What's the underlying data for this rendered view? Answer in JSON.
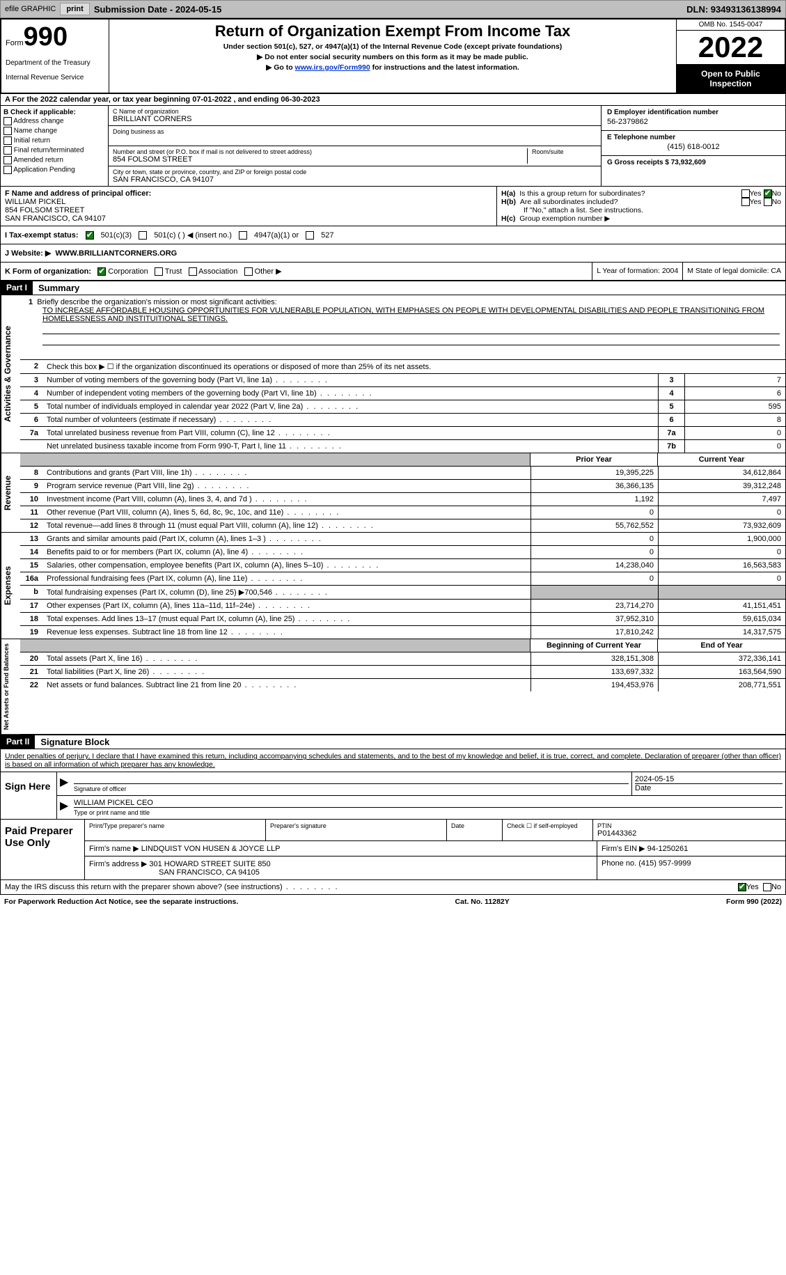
{
  "top": {
    "efile": "efile GRAPHIC",
    "print": "print",
    "sub_date_label": "Submission Date - 2024-05-15",
    "dln": "DLN: 93493136138994"
  },
  "header": {
    "form": "Form",
    "form_num": "990",
    "dept": "Department of the Treasury",
    "irs": "Internal Revenue Service",
    "title": "Return of Organization Exempt From Income Tax",
    "sub1": "Under section 501(c), 527, or 4947(a)(1) of the Internal Revenue Code (except private foundations)",
    "sub2": "▶ Do not enter social security numbers on this form as it may be made public.",
    "sub3_pre": "▶ Go to ",
    "sub3_link": "www.irs.gov/Form990",
    "sub3_post": " for instructions and the latest information.",
    "omb": "OMB No. 1545-0047",
    "year": "2022",
    "open": "Open to Public Inspection"
  },
  "section_a": "A For the 2022 calendar year, or tax year beginning 07-01-2022   , and ending 06-30-2023",
  "col_b": {
    "hdr": "B Check if applicable:",
    "items": [
      "Address change",
      "Name change",
      "Initial return",
      "Final return/terminated",
      "Amended return",
      "Application Pending"
    ]
  },
  "col_c": {
    "name_lbl": "C Name of organization",
    "name": "BRILLIANT CORNERS",
    "dba_lbl": "Doing business as",
    "addr_lbl": "Number and street (or P.O. box if mail is not delivered to street address)",
    "addr": "854 FOLSOM STREET",
    "room_lbl": "Room/suite",
    "city_lbl": "City or town, state or province, country, and ZIP or foreign postal code",
    "city": "SAN FRANCISCO, CA  94107"
  },
  "col_d": {
    "d_lbl": "D Employer identification number",
    "d_val": "56-2379862",
    "e_lbl": "E Telephone number",
    "e_val": "(415) 618-0012",
    "g_lbl": "G Gross receipts $ 73,932,609"
  },
  "fg": {
    "f_lbl": "F Name and address of principal officer:",
    "f_name": "WILLIAM PICKEL",
    "f_addr1": "854 FOLSOM STREET",
    "f_addr2": "SAN FRANCISCO, CA  94107",
    "ha": "Is this a group return for subordinates?",
    "hb": "Are all subordinates included?",
    "hb_note": "If \"No,\" attach a list. See instructions.",
    "hc": "Group exemption number ▶",
    "yes": "Yes",
    "no": "No"
  },
  "status": {
    "i_lbl": "I   Tax-exempt status:",
    "opt1": "501(c)(3)",
    "opt2": "501(c) (  ) ◀ (insert no.)",
    "opt3": "4947(a)(1) or",
    "opt4": "527"
  },
  "website": {
    "j_lbl": "J   Website: ▶",
    "val": "WWW.BRILLIANTCORNERS.ORG"
  },
  "klm": {
    "k": "K Form of organization:",
    "corp": "Corporation",
    "trust": "Trust",
    "assoc": "Association",
    "other": "Other ▶",
    "l": "L Year of formation: 2004",
    "m": "M State of legal domicile: CA"
  },
  "part1": {
    "hdr": "Part I",
    "title": "Summary",
    "mission_lbl": "Briefly describe the organization's mission or most significant activities:",
    "mission": "TO INCREASE AFFORDABLE HOUSING OPPORTUNITIES FOR VULNERABLE POPULATION, WITH EMPHASES ON PEOPLE WITH DEVELOPMENTAL DISABILITIES AND PEOPLE TRANSITIONING FROM HOMELESSNESS AND INSTITUITIONAL SETTINGS.",
    "line2": "Check this box ▶ ☐ if the organization discontinued its operations or disposed of more than 25% of its net assets.",
    "line3": "Number of voting members of the governing body (Part VI, line 1a)",
    "line4": "Number of independent voting members of the governing body (Part VI, line 1b)",
    "line5": "Total number of individuals employed in calendar year 2022 (Part V, line 2a)",
    "line6": "Total number of volunteers (estimate if necessary)",
    "line7a": "Total unrelated business revenue from Part VIII, column (C), line 12",
    "line7b": "Net unrelated business taxable income from Form 990-T, Part I, line 11",
    "v3": "7",
    "v4": "6",
    "v5": "595",
    "v6": "8",
    "v7a": "0",
    "v7b": "0",
    "prior_yr": "Prior Year",
    "curr_yr": "Current Year",
    "boy": "Beginning of Current Year",
    "eoy": "End of Year",
    "side_ag": "Activities & Governance",
    "side_rev": "Revenue",
    "side_exp": "Expenses",
    "side_na": "Net Assets or Fund Balances"
  },
  "revenue": [
    {
      "n": "8",
      "t": "Contributions and grants (Part VIII, line 1h)",
      "p": "19,395,225",
      "c": "34,612,864"
    },
    {
      "n": "9",
      "t": "Program service revenue (Part VIII, line 2g)",
      "p": "36,366,135",
      "c": "39,312,248"
    },
    {
      "n": "10",
      "t": "Investment income (Part VIII, column (A), lines 3, 4, and 7d )",
      "p": "1,192",
      "c": "7,497"
    },
    {
      "n": "11",
      "t": "Other revenue (Part VIII, column (A), lines 5, 6d, 8c, 9c, 10c, and 11e)",
      "p": "0",
      "c": "0"
    },
    {
      "n": "12",
      "t": "Total revenue—add lines 8 through 11 (must equal Part VIII, column (A), line 12)",
      "p": "55,762,552",
      "c": "73,932,609"
    }
  ],
  "expenses": [
    {
      "n": "13",
      "t": "Grants and similar amounts paid (Part IX, column (A), lines 1–3 )",
      "p": "0",
      "c": "1,900,000"
    },
    {
      "n": "14",
      "t": "Benefits paid to or for members (Part IX, column (A), line 4)",
      "p": "0",
      "c": "0"
    },
    {
      "n": "15",
      "t": "Salaries, other compensation, employee benefits (Part IX, column (A), lines 5–10)",
      "p": "14,238,040",
      "c": "16,563,583"
    },
    {
      "n": "16a",
      "t": "Professional fundraising fees (Part IX, column (A), line 11e)",
      "p": "0",
      "c": "0"
    },
    {
      "n": "b",
      "t": "Total fundraising expenses (Part IX, column (D), line 25) ▶700,546",
      "p": "",
      "c": "",
      "gray": true
    },
    {
      "n": "17",
      "t": "Other expenses (Part IX, column (A), lines 11a–11d, 11f–24e)",
      "p": "23,714,270",
      "c": "41,151,451"
    },
    {
      "n": "18",
      "t": "Total expenses. Add lines 13–17 (must equal Part IX, column (A), line 25)",
      "p": "37,952,310",
      "c": "59,615,034"
    },
    {
      "n": "19",
      "t": "Revenue less expenses. Subtract line 18 from line 12",
      "p": "17,810,242",
      "c": "14,317,575"
    }
  ],
  "netassets": [
    {
      "n": "20",
      "t": "Total assets (Part X, line 16)",
      "p": "328,151,308",
      "c": "372,336,141"
    },
    {
      "n": "21",
      "t": "Total liabilities (Part X, line 26)",
      "p": "133,697,332",
      "c": "163,564,590"
    },
    {
      "n": "22",
      "t": "Net assets or fund balances. Subtract line 21 from line 20",
      "p": "194,453,976",
      "c": "208,771,551"
    }
  ],
  "part2": {
    "hdr": "Part II",
    "title": "Signature Block",
    "decl": "Under penalties of perjury, I declare that I have examined this return, including accompanying schedules and statements, and to the best of my knowledge and belief, it is true, correct, and complete. Declaration of preparer (other than officer) is based on all information of which preparer has any knowledge.",
    "sign_here": "Sign Here",
    "sig_officer": "Signature of officer",
    "sig_date": "2024-05-15",
    "date_lbl": "Date",
    "officer_name": "WILLIAM PICKEL CEO",
    "type_name": "Type or print name and title",
    "paid": "Paid Preparer Use Only",
    "prep_name_lbl": "Print/Type preparer's name",
    "prep_sig_lbl": "Preparer's signature",
    "check_if": "Check ☐ if self-employed",
    "ptin_lbl": "PTIN",
    "ptin": "P01443362",
    "firm_name_lbl": "Firm's name    ▶",
    "firm_name": "LINDQUIST VON HUSEN & JOYCE LLP",
    "firm_ein_lbl": "Firm's EIN ▶",
    "firm_ein": "94-1250261",
    "firm_addr_lbl": "Firm's address ▶",
    "firm_addr1": "301 HOWARD STREET SUITE 850",
    "firm_addr2": "SAN FRANCISCO, CA  94105",
    "phone_lbl": "Phone no.",
    "phone": "(415) 957-9999",
    "may_irs": "May the IRS discuss this return with the preparer shown above? (see instructions)",
    "paperwork": "For Paperwork Reduction Act Notice, see the separate instructions.",
    "cat": "Cat. No. 11282Y",
    "form_foot": "Form 990 (2022)"
  }
}
